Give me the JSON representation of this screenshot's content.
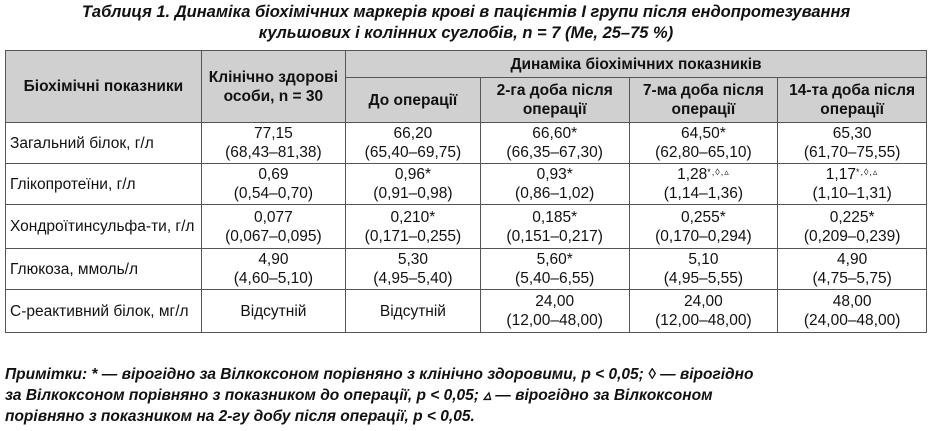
{
  "title": {
    "line1": "Таблиця 1. Динаміка біохімічних маркерів крові в пацієнтів І групи після ендопротезування",
    "line2": "кульшових і колінних суглобів, n = 7 (Me, 25–75 %)"
  },
  "header": {
    "col_indicators": "Біохімічні показники",
    "col_healthy": "Клінічно здорові особи, n = 30",
    "group_dynamics": "Динаміка біохімічних показників",
    "col_before": "До операції",
    "col_day2": "2-га доба після операції",
    "col_day7": "7-ма доба після операції",
    "col_day14": "14-та доба після операції"
  },
  "rows": [
    {
      "name": "Загальний білок, г/л",
      "healthy": {
        "value": "77,15",
        "range": "(68,43–81,38)",
        "mark": ""
      },
      "before": {
        "value": "66,20",
        "range": "(65,40–69,75)",
        "mark": ""
      },
      "day2": {
        "value": "66,60*",
        "range": "(66,35–67,30)",
        "mark": ""
      },
      "day7": {
        "value": "64,50*",
        "range": "(62,80–65,10)",
        "mark": ""
      },
      "day14": {
        "value": "65,30",
        "range": "(61,70–75,55)",
        "mark": ""
      }
    },
    {
      "name": "Глікопротеїни, г/л",
      "healthy": {
        "value": "0,69",
        "range": "(0,54–0,70)",
        "mark": ""
      },
      "before": {
        "value": "0,96*",
        "range": "(0,91–0,98)",
        "mark": ""
      },
      "day2": {
        "value": "0,93*",
        "range": "(0,86–1,02)",
        "mark": ""
      },
      "day7": {
        "value": "1,28",
        "range": "(1,14–1,36)",
        "mark": "*,◊,▵"
      },
      "day14": {
        "value": "1,17",
        "range": "(1,10–1,31)",
        "mark": "*,◊,▵"
      }
    },
    {
      "name": "Хондроїтинсульфа-ти, г/л",
      "healthy": {
        "value": "0,077",
        "range": "(0,067–0,095)",
        "mark": ""
      },
      "before": {
        "value": "0,210*",
        "range": "(0,171–0,255)",
        "mark": ""
      },
      "day2": {
        "value": "0,185*",
        "range": "(0,151–0,217)",
        "mark": ""
      },
      "day7": {
        "value": "0,255*",
        "range": "(0,170–0,294)",
        "mark": ""
      },
      "day14": {
        "value": "0,225*",
        "range": "(0,209–0,239)",
        "mark": ""
      }
    },
    {
      "name": "Глюкоза, ммоль/л",
      "healthy": {
        "value": "4,90",
        "range": "(4,60–5,10)",
        "mark": ""
      },
      "before": {
        "value": "5,30",
        "range": "(4,95–5,40)",
        "mark": ""
      },
      "day2": {
        "value": "5,60*",
        "range": "(5,40–6,55)",
        "mark": ""
      },
      "day7": {
        "value": "5,10",
        "range": "(4,95–5,55)",
        "mark": ""
      },
      "day14": {
        "value": "4,90",
        "range": "(4,75–5,75)",
        "mark": ""
      }
    },
    {
      "name": "С-реактивний білок, мг/л",
      "healthy": {
        "value": "Відсутній",
        "range": "",
        "mark": ""
      },
      "before": {
        "value": "Відсутній",
        "range": "",
        "mark": ""
      },
      "day2": {
        "value": "24,00",
        "range": "(12,00–48,00)",
        "mark": ""
      },
      "day7": {
        "value": "24,00",
        "range": "(12,00–48,00)",
        "mark": ""
      },
      "day14": {
        "value": "48,00",
        "range": "(24,00–48,00)",
        "mark": ""
      }
    }
  ],
  "notes": {
    "line1": "Примітки: * — вірогідно за Вілкоксоном порівняно з клінічно здоровими, p < 0,05; ◊ — вірогідно",
    "line2": "за Вілкоксоном порівняно з показником до операції, p < 0,05; ▵ — вірогідно за Вілкоксоном",
    "line3": "порівняно з показником на 2-гу добу після операції, p < 0,05."
  }
}
